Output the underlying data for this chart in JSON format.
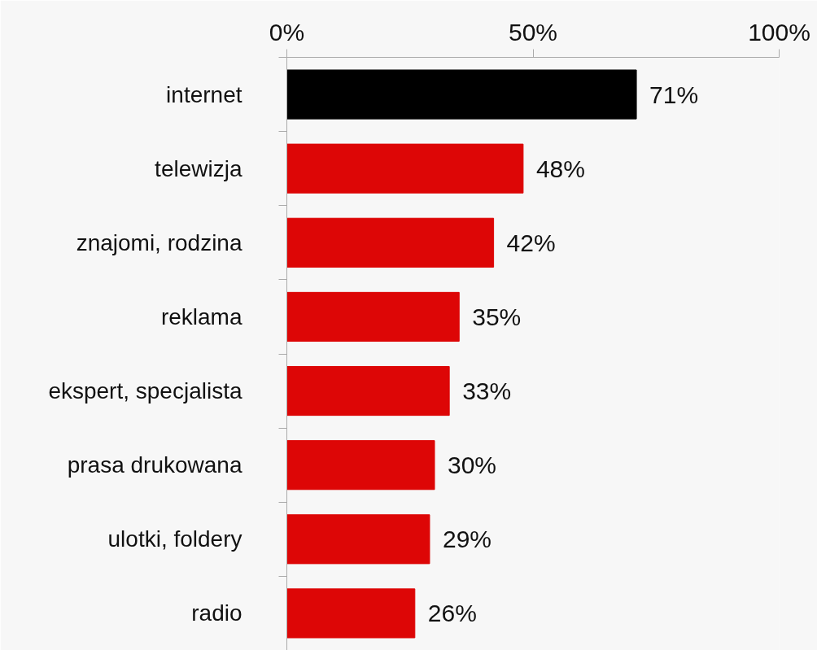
{
  "chart_data": {
    "type": "bar",
    "orientation": "horizontal",
    "categories": [
      "internet",
      "telewizja",
      "znajomi, rodzina",
      "reklama",
      "ekspert, specjalista",
      "prasa drukowana",
      "ulotki, foldery",
      "radio"
    ],
    "values": [
      71,
      48,
      42,
      35,
      33,
      30,
      29,
      26
    ],
    "colors": [
      "#000000",
      "#dd0606",
      "#dd0606",
      "#dd0606",
      "#dd0606",
      "#dd0606",
      "#dd0606",
      "#dd0606"
    ],
    "value_labels": [
      "71%",
      "48%",
      "42%",
      "35%",
      "33%",
      "30%",
      "29%",
      "26%"
    ],
    "xlim": [
      0,
      100
    ],
    "xticks": [
      {
        "value": 0,
        "label": "0%"
      },
      {
        "value": 50,
        "label": "50%"
      },
      {
        "value": 100,
        "label": "100%"
      }
    ],
    "grid": false
  }
}
